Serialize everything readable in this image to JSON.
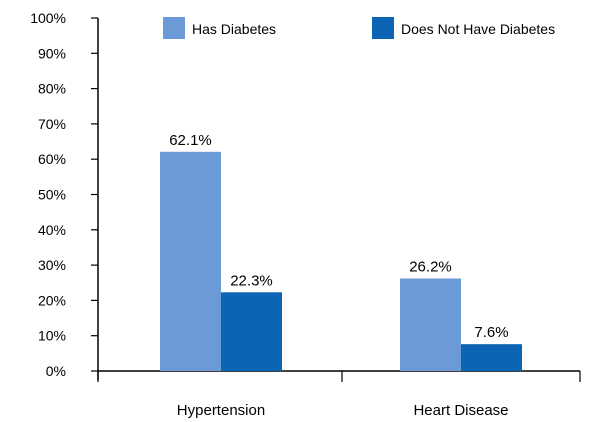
{
  "chart_data": {
    "type": "bar",
    "title": "",
    "xlabel": "",
    "ylabel": "",
    "categories": [
      "Hypertension",
      "Heart Disease"
    ],
    "series": [
      {
        "name": "Has Diabetes",
        "values": [
          62.1,
          26.2
        ],
        "labels": [
          "62.1%",
          "26.2%"
        ],
        "color": "#6b9ad6"
      },
      {
        "name": "Does Not Have Diabetes",
        "values": [
          22.3,
          7.6
        ],
        "labels": [
          "22.3%",
          "7.6%"
        ],
        "color": "#0b64b4"
      }
    ],
    "ylim": [
      0,
      100
    ],
    "yticks": [
      0,
      10,
      20,
      30,
      40,
      50,
      60,
      70,
      80,
      90,
      100
    ],
    "ytick_labels": [
      "0%",
      "10%",
      "20%",
      "30%",
      "40%",
      "50%",
      "60%",
      "70%",
      "80%",
      "90%",
      "100%"
    ],
    "legend_position": "top",
    "grid": false
  }
}
